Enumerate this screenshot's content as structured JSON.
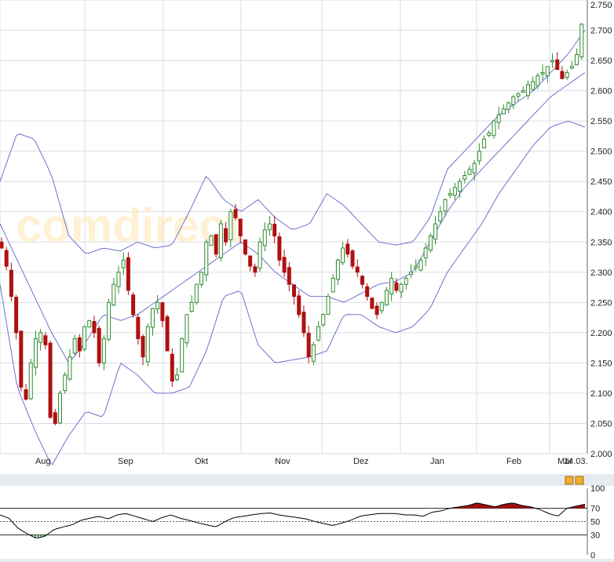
{
  "watermark": "comdirect",
  "rsi_legend_icons": [
    "settings-icon",
    "close-icon"
  ],
  "colors": {
    "up": "#2e8b2e",
    "down": "#b01010",
    "band": "#7070d0",
    "grid": "#d9dde3",
    "rsi_fill": "#a01010",
    "rsi_line": "#000000"
  },
  "chart_data": [
    {
      "type": "candlestick",
      "title": "",
      "ylim": [
        2000,
        2750
      ],
      "yticks": [
        "2.000",
        "2.050",
        "2.100",
        "2.150",
        "2.200",
        "2.250",
        "2.300",
        "2.350",
        "2.400",
        "2.450",
        "2.500",
        "2.550",
        "2.600",
        "2.650",
        "2.700",
        "2.750"
      ],
      "xticks": [
        "Aug",
        "Sep",
        "Okt",
        "Nov",
        "Dez",
        "Jan",
        "Feb",
        "Mär"
      ],
      "x_extra_label": "14.03.",
      "grid": true,
      "overlays": [
        "bollinger_upper",
        "bollinger_middle",
        "bollinger_lower"
      ],
      "band_anchors": {
        "upper": [
          2450,
          2530,
          2520,
          2460,
          2360,
          2330,
          2340,
          2335,
          2350,
          2340,
          2345,
          2400,
          2460,
          2420,
          2400,
          2420,
          2390,
          2370,
          2380,
          2430,
          2410,
          2380,
          2350,
          2345,
          2350,
          2390,
          2470,
          2500,
          2530,
          2560,
          2580,
          2600,
          2630,
          2660,
          2700
        ],
        "middle": [
          2380,
          2320,
          2260,
          2200,
          2150,
          2185,
          2230,
          2220,
          2230,
          2250,
          2270,
          2290,
          2310,
          2330,
          2350,
          2330,
          2300,
          2280,
          2260,
          2260,
          2250,
          2265,
          2280,
          2285,
          2300,
          2350,
          2400,
          2440,
          2470,
          2500,
          2530,
          2560,
          2590,
          2610,
          2630
        ],
        "lower": [
          2280,
          2110,
          2040,
          1980,
          2030,
          2070,
          2060,
          2150,
          2130,
          2100,
          2100,
          2110,
          2170,
          2260,
          2270,
          2180,
          2150,
          2155,
          2160,
          2170,
          2230,
          2230,
          2210,
          2200,
          2210,
          2240,
          2300,
          2340,
          2380,
          2430,
          2470,
          2510,
          2540,
          2550,
          2540
        ]
      },
      "closes": [
        2340,
        2310,
        2260,
        2200,
        2110,
        2090,
        2150,
        2190,
        2200,
        2180,
        2060,
        2050,
        2100,
        2130,
        2160,
        2190,
        2170,
        2210,
        2220,
        2200,
        2150,
        2190,
        2250,
        2280,
        2300,
        2320,
        2270,
        2230,
        2190,
        2160,
        2210,
        2240,
        2250,
        2220,
        2170,
        2120,
        2130,
        2190,
        2230,
        2250,
        2280,
        2300,
        2350,
        2360,
        2330,
        2380,
        2350,
        2400,
        2390,
        2360,
        2330,
        2310,
        2300,
        2350,
        2370,
        2380,
        2360,
        2320,
        2300,
        2280,
        2260,
        2230,
        2200,
        2160,
        2180,
        2210,
        2230,
        2260,
        2290,
        2320,
        2340,
        2330,
        2310,
        2300,
        2280,
        2260,
        2240,
        2230,
        2250,
        2270,
        2290,
        2270,
        2280,
        2290,
        2300,
        2310,
        2320,
        2340,
        2360,
        2380,
        2400,
        2420,
        2430,
        2440,
        2450,
        2460,
        2470,
        2480,
        2500,
        2520,
        2530,
        2550,
        2560,
        2570,
        2580,
        2590,
        2595,
        2600,
        2610,
        2615,
        2625,
        2630,
        2640,
        2650,
        2635,
        2620,
        2630,
        2640,
        2660,
        2710
      ],
      "ohlc_count": 120
    },
    {
      "type": "line",
      "title": "",
      "ylim": [
        0,
        100
      ],
      "yticks": [
        "0",
        "30",
        "50",
        "70",
        "100"
      ],
      "reference_lines": [
        70,
        50,
        30
      ],
      "rsi_anchors": [
        60,
        55,
        40,
        32,
        25,
        28,
        38,
        42,
        45,
        52,
        55,
        58,
        54,
        60,
        62,
        58,
        54,
        50,
        56,
        60,
        55,
        52,
        48,
        45,
        42,
        50,
        56,
        58,
        60,
        62,
        63,
        60,
        58,
        56,
        54,
        50,
        47,
        44,
        48,
        52,
        58,
        60,
        62,
        62,
        62,
        60,
        60,
        58,
        64,
        66,
        70,
        72,
        74,
        78,
        75,
        72,
        76,
        78,
        74,
        72,
        68,
        62,
        58,
        70,
        73,
        76
      ]
    }
  ]
}
